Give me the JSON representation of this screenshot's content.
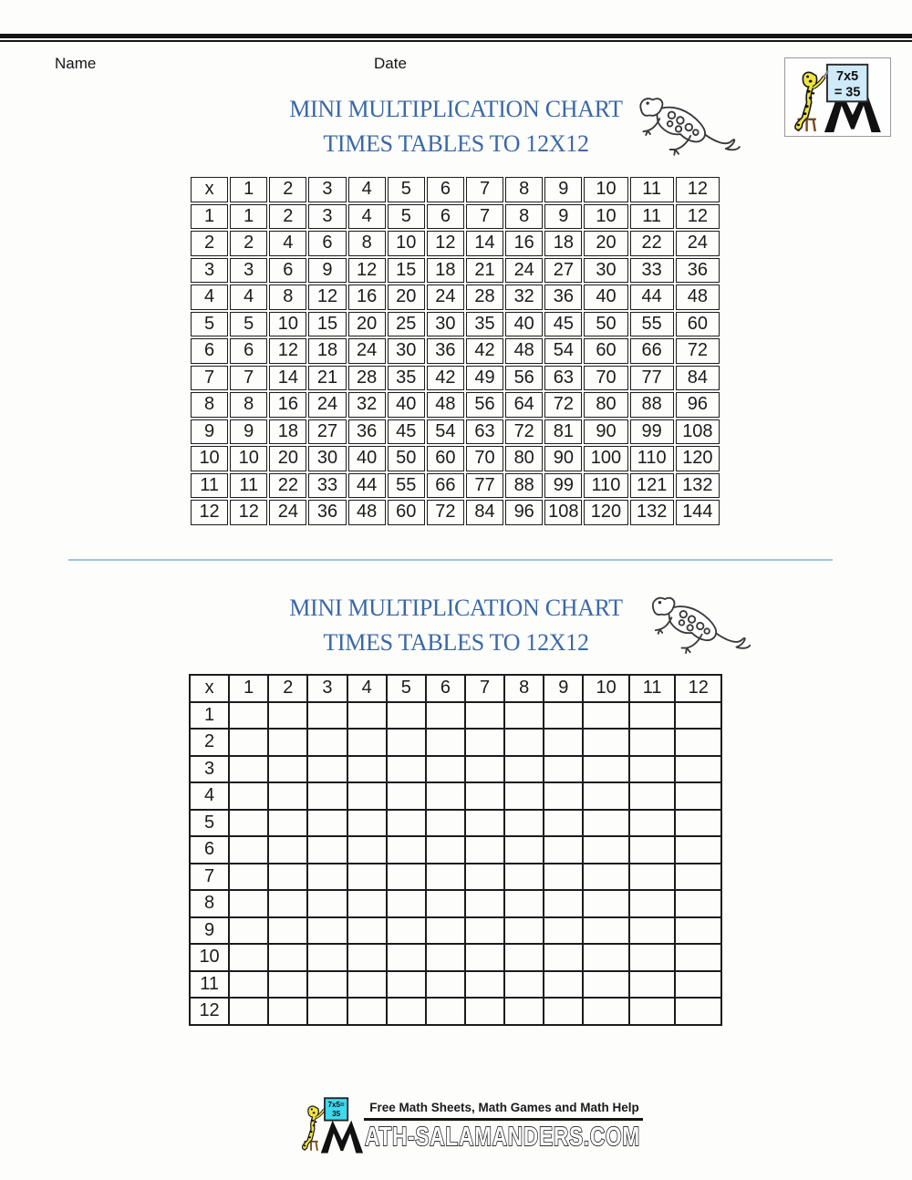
{
  "header": {
    "name_label": "Name",
    "date_label": "Date"
  },
  "corner_logo": {
    "board_line1": "7x5",
    "board_line2": "= 35"
  },
  "sections": {
    "top": {
      "title_line1": "MINI MULTIPLICATION CHART",
      "title_line2": "TIMES TABLES TO 12X12"
    },
    "bottom": {
      "title_line1": "MINI MULTIPLICATION CHART",
      "title_line2": "TIMES TABLES TO 12X12"
    }
  },
  "table_filled": {
    "header": [
      "x",
      "1",
      "2",
      "3",
      "4",
      "5",
      "6",
      "7",
      "8",
      "9",
      "10",
      "11",
      "12"
    ],
    "rows": [
      {
        "label": "1",
        "values": [
          1,
          2,
          3,
          4,
          5,
          6,
          7,
          8,
          9,
          10,
          11,
          12
        ]
      },
      {
        "label": "2",
        "values": [
          2,
          4,
          6,
          8,
          10,
          12,
          14,
          16,
          18,
          20,
          22,
          24
        ]
      },
      {
        "label": "3",
        "values": [
          3,
          6,
          9,
          12,
          15,
          18,
          21,
          24,
          27,
          30,
          33,
          36
        ]
      },
      {
        "label": "4",
        "values": [
          4,
          8,
          12,
          16,
          20,
          24,
          28,
          32,
          36,
          40,
          44,
          48
        ]
      },
      {
        "label": "5",
        "values": [
          5,
          10,
          15,
          20,
          25,
          30,
          35,
          40,
          45,
          50,
          55,
          60
        ]
      },
      {
        "label": "6",
        "values": [
          6,
          12,
          18,
          24,
          30,
          36,
          42,
          48,
          54,
          60,
          66,
          72
        ]
      },
      {
        "label": "7",
        "values": [
          7,
          14,
          21,
          28,
          35,
          42,
          49,
          56,
          63,
          70,
          77,
          84
        ]
      },
      {
        "label": "8",
        "values": [
          8,
          16,
          24,
          32,
          40,
          48,
          56,
          64,
          72,
          80,
          88,
          96
        ]
      },
      {
        "label": "9",
        "values": [
          9,
          18,
          27,
          36,
          45,
          54,
          63,
          72,
          81,
          90,
          99,
          108
        ]
      },
      {
        "label": "10",
        "values": [
          10,
          20,
          30,
          40,
          50,
          60,
          70,
          80,
          90,
          100,
          110,
          120
        ]
      },
      {
        "label": "11",
        "values": [
          11,
          22,
          33,
          44,
          55,
          66,
          77,
          88,
          99,
          110,
          121,
          132
        ]
      },
      {
        "label": "12",
        "values": [
          12,
          24,
          36,
          48,
          60,
          72,
          84,
          96,
          108,
          120,
          132,
          144
        ]
      }
    ]
  },
  "table_blank": {
    "header": [
      "x",
      "1",
      "2",
      "3",
      "4",
      "5",
      "6",
      "7",
      "8",
      "9",
      "10",
      "11",
      "12"
    ],
    "row_labels": [
      "1",
      "2",
      "3",
      "4",
      "5",
      "6",
      "7",
      "8",
      "9",
      "10",
      "11",
      "12"
    ]
  },
  "footer": {
    "tagline": "Free Math Sheets, Math Games and Math Help",
    "site_text": "ATH-SALAMANDERS.COM",
    "board_line1": "7x5=",
    "board_line2": "35"
  },
  "icons": {
    "corner_logo": "salamander-writing-on-board-icon",
    "section_decoration": "gecko-icon",
    "footer_logo": "salamander-m-logo-icon"
  },
  "colors": {
    "title_blue": "#3a68a8",
    "divider_blue": "#9dc3e6",
    "table_border": "#1c1c1c",
    "top_rule_black": "#141414",
    "salamander_yellow": "#f0e440",
    "footer_board_cyan": "#3fd9ee",
    "corner_board_blue": "#cfeaf8"
  }
}
